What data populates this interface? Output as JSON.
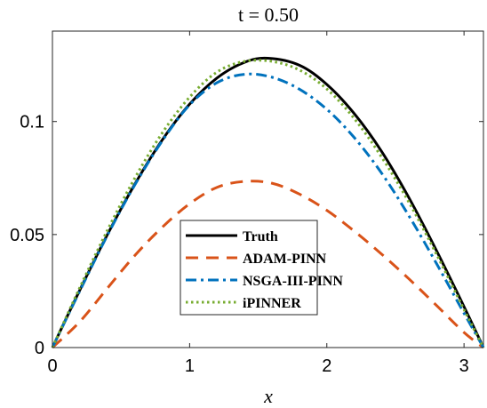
{
  "chart_data": {
    "type": "line",
    "title": "t = 0.50",
    "xlabel": "x",
    "ylabel": "",
    "xlim": [
      0,
      3.1416
    ],
    "ylim": [
      0,
      0.14
    ],
    "grid": false,
    "legend_position": "lower-center",
    "xticks": [
      0,
      1,
      2,
      3
    ],
    "xtick_labels": [
      "0",
      "1",
      "2",
      "3"
    ],
    "yticks": [
      0,
      0.05,
      0.1
    ],
    "ytick_labels": [
      "0",
      "0.05",
      "0.1"
    ],
    "series": [
      {
        "name": "Truth",
        "color": "#000000",
        "style": "solid",
        "x": [
          0,
          0.2,
          0.4,
          0.6,
          0.8,
          1.0,
          1.2,
          1.4,
          1.57,
          1.8,
          2.0,
          2.2,
          2.4,
          2.6,
          2.8,
          3.0,
          3.1416
        ],
        "y": [
          0,
          0.0255,
          0.0499,
          0.0722,
          0.0918,
          0.1077,
          0.1193,
          0.1262,
          0.128,
          0.1249,
          0.1164,
          0.1035,
          0.0867,
          0.0661,
          0.0428,
          0.0181,
          0
        ]
      },
      {
        "name": "ADAM-PINN",
        "color": "#D95319",
        "style": "dashed",
        "x": [
          0,
          0.2,
          0.4,
          0.6,
          0.8,
          1.0,
          1.2,
          1.4,
          1.6,
          1.8,
          2.0,
          2.2,
          2.4,
          2.6,
          2.8,
          3.0,
          3.1416
        ],
        "y": [
          0,
          0.0115,
          0.0262,
          0.0407,
          0.0532,
          0.0636,
          0.0709,
          0.0735,
          0.0727,
          0.0679,
          0.0607,
          0.0515,
          0.0413,
          0.0303,
          0.0186,
          0.0067,
          0
        ]
      },
      {
        "name": "NSGA-III-PINN",
        "color": "#0072BD",
        "style": "dashdot",
        "x": [
          0,
          0.2,
          0.4,
          0.6,
          0.8,
          1.0,
          1.2,
          1.4,
          1.6,
          1.8,
          2.0,
          2.2,
          2.4,
          2.6,
          2.8,
          3.0,
          3.1416
        ],
        "y": [
          0,
          0.0251,
          0.0496,
          0.0719,
          0.0914,
          0.1074,
          0.1172,
          0.1209,
          0.1196,
          0.1143,
          0.1054,
          0.0929,
          0.0771,
          0.0581,
          0.0371,
          0.0152,
          0
        ]
      },
      {
        "name": "iPINNER",
        "color": "#77AC30",
        "style": "dotted",
        "x": [
          0,
          0.2,
          0.4,
          0.6,
          0.8,
          1.0,
          1.2,
          1.4,
          1.6,
          1.8,
          2.0,
          2.2,
          2.4,
          2.6,
          2.8,
          3.0,
          3.1416
        ],
        "y": [
          0,
          0.0266,
          0.0518,
          0.0749,
          0.0949,
          0.1108,
          0.1219,
          0.1266,
          0.1266,
          0.1228,
          0.1144,
          0.1013,
          0.0842,
          0.0641,
          0.0412,
          0.0168,
          0
        ]
      }
    ]
  }
}
